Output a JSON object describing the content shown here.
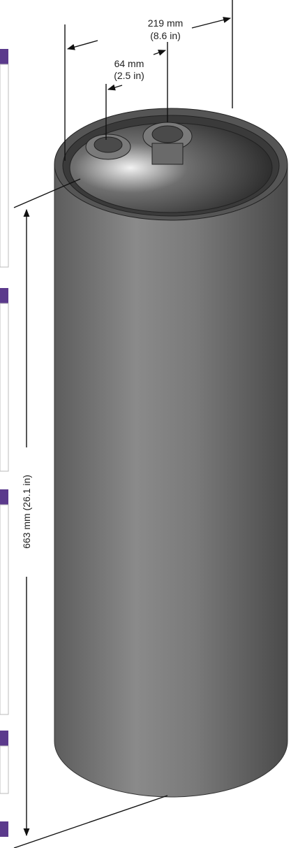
{
  "dimensions": {
    "diameter": {
      "metric": "219 mm",
      "imperial": "(8.6 in)"
    },
    "port": {
      "metric": "64 mm",
      "imperial": "(2.5 in)"
    },
    "height": {
      "label": "663 mm (26.1 in)"
    }
  }
}
